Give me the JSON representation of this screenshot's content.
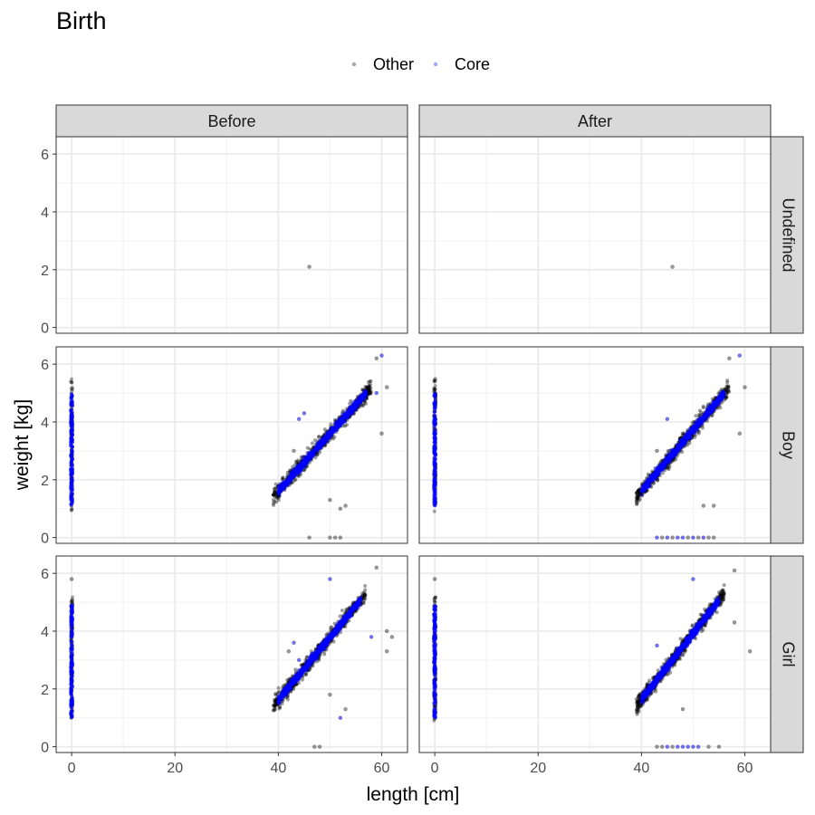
{
  "chart_data": {
    "type": "scatter",
    "title": "Birth",
    "xlabel": "length [cm]",
    "ylabel": "weight [kg]",
    "xlim": [
      -3,
      65
    ],
    "ylim": [
      -0.2,
      6.6
    ],
    "x_ticks": [
      0,
      20,
      40,
      60
    ],
    "y_ticks": [
      0,
      2,
      4,
      6
    ],
    "grid": true,
    "legend_position": "top",
    "legend": [
      {
        "name": "Other",
        "color": "#000000"
      },
      {
        "name": "Core",
        "color": "#0000ff"
      }
    ],
    "facet_columns": [
      "Before",
      "After"
    ],
    "facet_rows": [
      "Undefined",
      "Boy",
      "Girl"
    ],
    "panels": [
      {
        "row": "Undefined",
        "col": "Before",
        "clusters": [],
        "points": [
          {
            "x": 46,
            "y": 2.1,
            "group": "Other"
          }
        ]
      },
      {
        "row": "Undefined",
        "col": "After",
        "clusters": [],
        "points": [
          {
            "x": 46,
            "y": 2.1,
            "group": "Other"
          }
        ]
      },
      {
        "row": "Boy",
        "col": "Before",
        "clusters": [
          {
            "kind": "column",
            "x": 0,
            "y_min": 0.9,
            "y_max": 5.5,
            "core_y_min": 1.1,
            "core_y_max": 5.0
          },
          {
            "kind": "band",
            "x_min": 39,
            "x_max": 58,
            "y_at_min": 1.4,
            "y_at_max": 5.2,
            "spread": 0.5
          }
        ],
        "points": [
          {
            "x": 52,
            "y": 1.0,
            "group": "Other"
          },
          {
            "x": 53,
            "y": 1.1,
            "group": "Other"
          },
          {
            "x": 50,
            "y": 1.3,
            "group": "Other"
          },
          {
            "x": 46,
            "y": 0.0,
            "group": "Other"
          },
          {
            "x": 50,
            "y": 0.0,
            "group": "Other"
          },
          {
            "x": 51,
            "y": 0.0,
            "group": "Other"
          },
          {
            "x": 52,
            "y": 0.0,
            "group": "Other"
          },
          {
            "x": 60,
            "y": 3.6,
            "group": "Other"
          },
          {
            "x": 59,
            "y": 6.2,
            "group": "Other"
          },
          {
            "x": 60,
            "y": 6.3,
            "group": "Core"
          },
          {
            "x": 43,
            "y": 3.0,
            "group": "Other"
          },
          {
            "x": 45,
            "y": 4.3,
            "group": "Core"
          },
          {
            "x": 44,
            "y": 4.1,
            "group": "Core"
          },
          {
            "x": 61,
            "y": 5.2,
            "group": "Other"
          },
          {
            "x": 59,
            "y": 5.0,
            "group": "Core"
          }
        ]
      },
      {
        "row": "Boy",
        "col": "After",
        "clusters": [
          {
            "kind": "column",
            "x": 0,
            "y_min": 0.9,
            "y_max": 5.5,
            "core_y_min": 1.1,
            "core_y_max": 5.0
          },
          {
            "kind": "band",
            "x_min": 39,
            "x_max": 57,
            "y_at_min": 1.4,
            "y_at_max": 5.2,
            "spread": 0.5
          }
        ],
        "points": [
          {
            "x": 43,
            "y": 0.0,
            "group": "Core"
          },
          {
            "x": 44,
            "y": 0.0,
            "group": "Other"
          },
          {
            "x": 45,
            "y": 0.0,
            "group": "Core"
          },
          {
            "x": 46,
            "y": 0.0,
            "group": "Other"
          },
          {
            "x": 47,
            "y": 0.0,
            "group": "Core"
          },
          {
            "x": 48,
            "y": 0.0,
            "group": "Core"
          },
          {
            "x": 49,
            "y": 0.0,
            "group": "Other"
          },
          {
            "x": 50,
            "y": 0.0,
            "group": "Core"
          },
          {
            "x": 51,
            "y": 0.0,
            "group": "Other"
          },
          {
            "x": 52,
            "y": 0.0,
            "group": "Core"
          },
          {
            "x": 53,
            "y": 0.0,
            "group": "Other"
          },
          {
            "x": 54,
            "y": 0.0,
            "group": "Other"
          },
          {
            "x": 52,
            "y": 1.1,
            "group": "Other"
          },
          {
            "x": 54,
            "y": 1.1,
            "group": "Other"
          },
          {
            "x": 59,
            "y": 3.6,
            "group": "Other"
          },
          {
            "x": 57,
            "y": 6.2,
            "group": "Other"
          },
          {
            "x": 59,
            "y": 6.3,
            "group": "Core"
          },
          {
            "x": 43,
            "y": 3.0,
            "group": "Other"
          },
          {
            "x": 45,
            "y": 4.1,
            "group": "Core"
          },
          {
            "x": 60,
            "y": 5.2,
            "group": "Other"
          }
        ]
      },
      {
        "row": "Girl",
        "col": "Before",
        "clusters": [
          {
            "kind": "column",
            "x": 0,
            "y_min": 0.9,
            "y_max": 5.2,
            "core_y_min": 1.0,
            "core_y_max": 4.9
          },
          {
            "kind": "band",
            "x_min": 39,
            "x_max": 57,
            "y_at_min": 1.4,
            "y_at_max": 5.3,
            "spread": 0.5
          }
        ],
        "points": [
          {
            "x": 0,
            "y": 5.8,
            "group": "Other"
          },
          {
            "x": 47,
            "y": 0.0,
            "group": "Other"
          },
          {
            "x": 48,
            "y": 0.0,
            "group": "Other"
          },
          {
            "x": 52,
            "y": 1.0,
            "group": "Core"
          },
          {
            "x": 53,
            "y": 1.3,
            "group": "Other"
          },
          {
            "x": 50,
            "y": 1.8,
            "group": "Other"
          },
          {
            "x": 61,
            "y": 4.0,
            "group": "Other"
          },
          {
            "x": 62,
            "y": 3.8,
            "group": "Other"
          },
          {
            "x": 61,
            "y": 3.3,
            "group": "Other"
          },
          {
            "x": 59,
            "y": 6.2,
            "group": "Other"
          },
          {
            "x": 50,
            "y": 5.8,
            "group": "Core"
          },
          {
            "x": 43,
            "y": 3.6,
            "group": "Core"
          },
          {
            "x": 44,
            "y": 3.0,
            "group": "Core"
          },
          {
            "x": 58,
            "y": 3.8,
            "group": "Core"
          },
          {
            "x": 42,
            "y": 3.3,
            "group": "Other"
          }
        ]
      },
      {
        "row": "Girl",
        "col": "After",
        "clusters": [
          {
            "kind": "column",
            "x": 0,
            "y_min": 0.9,
            "y_max": 5.2,
            "core_y_min": 1.0,
            "core_y_max": 4.9
          },
          {
            "kind": "band",
            "x_min": 39,
            "x_max": 56,
            "y_at_min": 1.4,
            "y_at_max": 5.3,
            "spread": 0.5
          }
        ],
        "points": [
          {
            "x": 0,
            "y": 5.8,
            "group": "Other"
          },
          {
            "x": 43,
            "y": 0.0,
            "group": "Other"
          },
          {
            "x": 44,
            "y": 0.0,
            "group": "Other"
          },
          {
            "x": 45,
            "y": 0.0,
            "group": "Core"
          },
          {
            "x": 46,
            "y": 0.0,
            "group": "Other"
          },
          {
            "x": 47,
            "y": 0.0,
            "group": "Core"
          },
          {
            "x": 48,
            "y": 0.0,
            "group": "Core"
          },
          {
            "x": 49,
            "y": 0.0,
            "group": "Core"
          },
          {
            "x": 50,
            "y": 0.0,
            "group": "Core"
          },
          {
            "x": 51,
            "y": 0.0,
            "group": "Core"
          },
          {
            "x": 53,
            "y": 0.0,
            "group": "Other"
          },
          {
            "x": 55,
            "y": 0.0,
            "group": "Other"
          },
          {
            "x": 61,
            "y": 3.3,
            "group": "Other"
          },
          {
            "x": 58,
            "y": 6.1,
            "group": "Other"
          },
          {
            "x": 50,
            "y": 5.8,
            "group": "Core"
          },
          {
            "x": 48,
            "y": 1.3,
            "group": "Other"
          },
          {
            "x": 43,
            "y": 3.5,
            "group": "Core"
          },
          {
            "x": 58,
            "y": 4.3,
            "group": "Other"
          }
        ]
      }
    ]
  }
}
